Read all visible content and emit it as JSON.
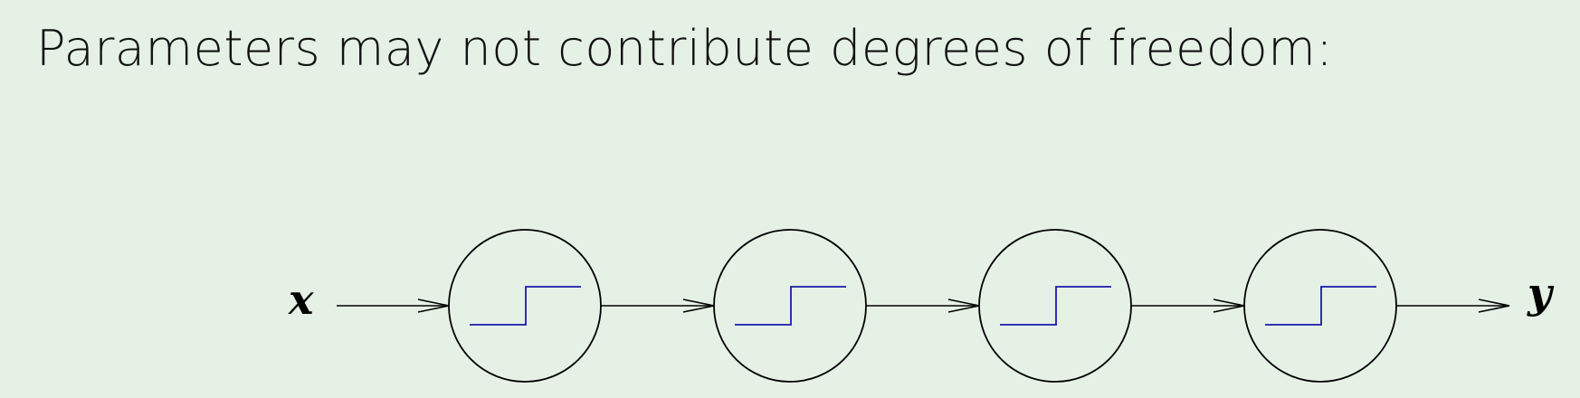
{
  "slide": {
    "title": "Parameters may not contribute degrees of freedom:"
  },
  "diagram": {
    "input_label": "x",
    "output_label": "y",
    "nodes": [
      {
        "icon": "step-function-icon"
      },
      {
        "icon": "step-function-icon"
      },
      {
        "icon": "step-function-icon"
      },
      {
        "icon": "step-function-icon"
      }
    ],
    "colors": {
      "background": "#e6f1e6",
      "stroke": "#000000",
      "step": "#1a1aaa"
    }
  }
}
